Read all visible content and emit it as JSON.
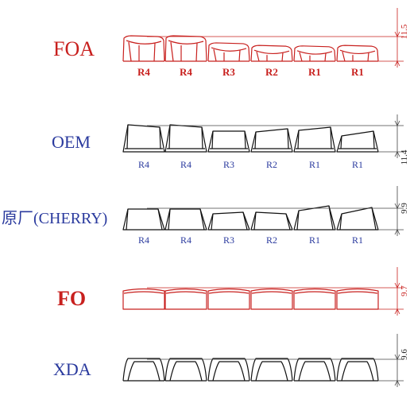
{
  "colors": {
    "red": "#c8201e",
    "blue": "#2a3a9e",
    "black": "#111111"
  },
  "profiles": [
    {
      "name": "FOA",
      "color": "red",
      "dimension": "11.5",
      "shape": "foa",
      "rows": [
        "R4",
        "R4",
        "R3",
        "R2",
        "R1",
        "R1"
      ]
    },
    {
      "name": "OEM",
      "color": "blue",
      "dimension": "11.4",
      "shape": "oem",
      "rows": [
        "R4",
        "R4",
        "R3",
        "R2",
        "R1",
        "R1"
      ]
    },
    {
      "name": "原厂(CHERRY)",
      "color": "blue",
      "dimension": "9.9",
      "shape": "cherry",
      "rows": [
        "R4",
        "R4",
        "R3",
        "R2",
        "R1",
        "R1"
      ]
    },
    {
      "name": "FO",
      "color": "red",
      "dimension": "9.7",
      "shape": "fo",
      "rows": []
    },
    {
      "name": "XDA",
      "color": "blue",
      "dimension": "9.6",
      "shape": "xda",
      "rows": []
    }
  ]
}
